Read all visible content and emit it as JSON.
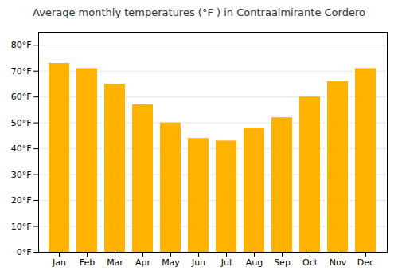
{
  "chart_data": {
    "type": "bar",
    "title": "Average monthly temperatures (°F ) in Contraalmirante Cordero",
    "categories": [
      "Jan",
      "Feb",
      "Mar",
      "Apr",
      "May",
      "Jun",
      "Jul",
      "Aug",
      "Sep",
      "Oct",
      "Nov",
      "Dec"
    ],
    "values": [
      73,
      71,
      65,
      57,
      50,
      44,
      43,
      48,
      52,
      60,
      66,
      71
    ],
    "color": "#FFB300",
    "ylim": [
      0,
      85
    ],
    "yticks": [
      {
        "value": 0,
        "label": "0°F"
      },
      {
        "value": 10,
        "label": "10°F"
      },
      {
        "value": 20,
        "label": "20°F"
      },
      {
        "value": 30,
        "label": "30°F"
      },
      {
        "value": 40,
        "label": "40°F"
      },
      {
        "value": 50,
        "label": "50°F"
      },
      {
        "value": 60,
        "label": "60°F"
      },
      {
        "value": 70,
        "label": "70°F"
      },
      {
        "value": 80,
        "label": "80°F"
      }
    ],
    "grid": true
  }
}
